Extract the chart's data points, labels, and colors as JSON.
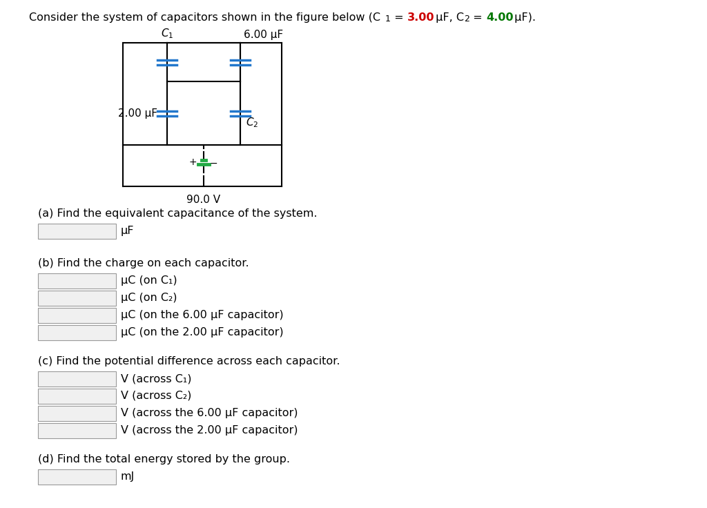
{
  "bg_color": "#ffffff",
  "circuit_line_color": "#000000",
  "cap_color_blue": "#2277cc",
  "cap_color_green": "#22aa44",
  "text_color": "#000000",
  "red_color": "#cc0000",
  "green_color": "#007700",
  "input_box_color": "#f0f0f0",
  "input_box_border": "#999999",
  "section_a_title": "(a) Find the equivalent capacitance of the system.",
  "section_a_unit": "μF",
  "section_b_title": "(b) Find the charge on each capacitor.",
  "section_b_items": [
    "μC (on C₁)",
    "μC (on C₂)",
    "μC (on the 6.00 μF capacitor)",
    "μC (on the 2.00 μF capacitor)"
  ],
  "section_c_title": "(c) Find the potential difference across each capacitor.",
  "section_c_items": [
    "V (across C₁)",
    "V (across C₂)",
    "V (across the 6.00 μF capacitor)",
    "V (across the 2.00 μF capacitor)"
  ],
  "section_d_title": "(d) Find the total energy stored by the group.",
  "section_d_unit": "mJ"
}
